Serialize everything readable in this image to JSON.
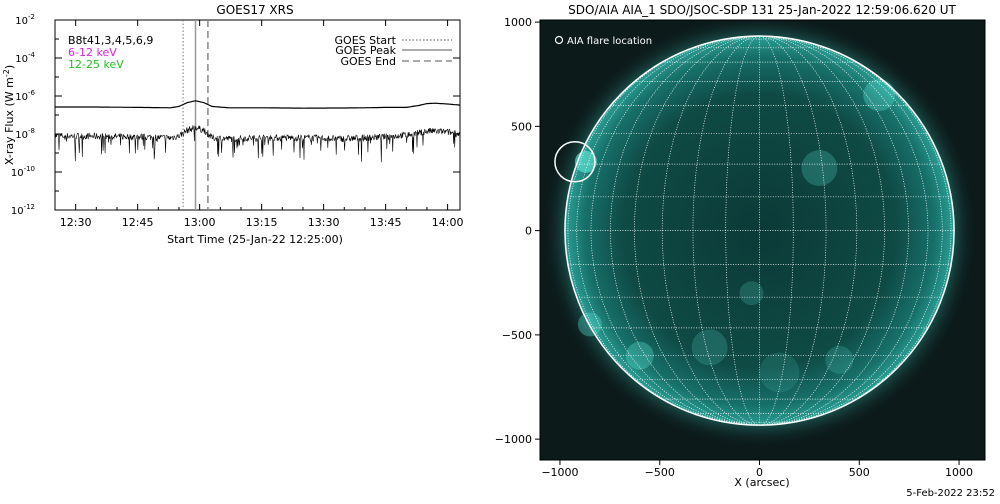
{
  "chart_data": [
    {
      "type": "line",
      "title": "GOES17 XRS",
      "xlabel": "Start Time (25-Jan-22 12:25:00)",
      "ylabel": "X-ray Flux (W m-2)",
      "x_ticks": [
        "12:30",
        "12:45",
        "13:00",
        "13:15",
        "13:30",
        "13:45",
        "14:00"
      ],
      "x_tick_minutes": [
        5,
        20,
        35,
        50,
        65,
        80,
        95
      ],
      "xlim_minutes": [
        0,
        98
      ],
      "y_ticks": [
        {
          "base": "10",
          "exp": "-2"
        },
        {
          "base": "10",
          "exp": "-4"
        },
        {
          "base": "10",
          "exp": "-6"
        },
        {
          "base": "10",
          "exp": "-8"
        },
        {
          "base": "10",
          "exp": "-10"
        },
        {
          "base": "10",
          "exp": "-12"
        }
      ],
      "y_tick_exponents": [
        -2,
        -4,
        -6,
        -8,
        -10,
        -12
      ],
      "ylim_log10": [
        -12,
        -2
      ],
      "y_scale": "log",
      "legend_left": [
        {
          "text": "B8t41,3,4,5,6,9",
          "color": "#000000"
        },
        {
          "text": "6-12 keV",
          "color": "#e020e0"
        },
        {
          "text": "12-25 keV",
          "color": "#20c020"
        }
      ],
      "legend_right": [
        {
          "text": "GOES Start",
          "style": "dotted"
        },
        {
          "text": "GOES Peak",
          "style": "solid"
        },
        {
          "text": "GOES End",
          "style": "dashed"
        }
      ],
      "legend_placement": "top-right",
      "markers_minutes": {
        "start": 31,
        "peak": 34,
        "end": 37
      },
      "series": [
        {
          "x": [
            0,
            10,
            20,
            28,
            30,
            32,
            34,
            36,
            38,
            42,
            50,
            60,
            70,
            75,
            80,
            85,
            88,
            90,
            92,
            95,
            98
          ],
          "log10_y": [
            -6.58,
            -6.58,
            -6.6,
            -6.62,
            -6.55,
            -6.35,
            -6.25,
            -6.35,
            -6.55,
            -6.62,
            -6.62,
            -6.64,
            -6.63,
            -6.62,
            -6.6,
            -6.6,
            -6.5,
            -6.4,
            -6.38,
            -6.42,
            -6.48
          ]
        },
        {
          "x": [
            0,
            10,
            20,
            28,
            30,
            32,
            34,
            36,
            38,
            42,
            50,
            60,
            70,
            75,
            80,
            85,
            88,
            90,
            92,
            95,
            98
          ],
          "log10_y": [
            -8.1,
            -8.12,
            -8.15,
            -8.2,
            -8.1,
            -7.8,
            -7.65,
            -7.8,
            -8.2,
            -8.25,
            -8.2,
            -8.2,
            -8.25,
            -8.2,
            -8.15,
            -8.05,
            -7.95,
            -7.85,
            -7.85,
            -7.9,
            -8.0
          ]
        }
      ]
    },
    {
      "type": "heatmap",
      "title": "SDO/AIA AIA_1 SDO/JSOC-SDP 131 25-Jan-2022 12:59:06.620 UT",
      "xlabel": "X (arcsec)",
      "ylabel": "",
      "x_ticks": [
        "−1000",
        "−500",
        "0",
        "500",
        "1000"
      ],
      "x_tick_values": [
        -1000,
        -500,
        0,
        500,
        1000
      ],
      "y_ticks": [
        "1000",
        "500",
        "0",
        "−500",
        "−1000"
      ],
      "y_tick_values": [
        1000,
        500,
        0,
        -500,
        -1000
      ],
      "xlim": [
        -1100,
        1130
      ],
      "ylim": [
        -1100,
        1010
      ],
      "disk_radius_arcsec": 975,
      "grid_spacing_deg": 10,
      "legend": "AIA flare location",
      "flare_location_arcsec": [
        -925,
        330
      ],
      "colors": {
        "disk": "#0a5a55",
        "limb": "#2fb0a4",
        "background": "#0c1a1a",
        "grid": "#ffffff"
      }
    }
  ],
  "footer": {
    "timestamp": "5-Feb-2022 23:52"
  }
}
